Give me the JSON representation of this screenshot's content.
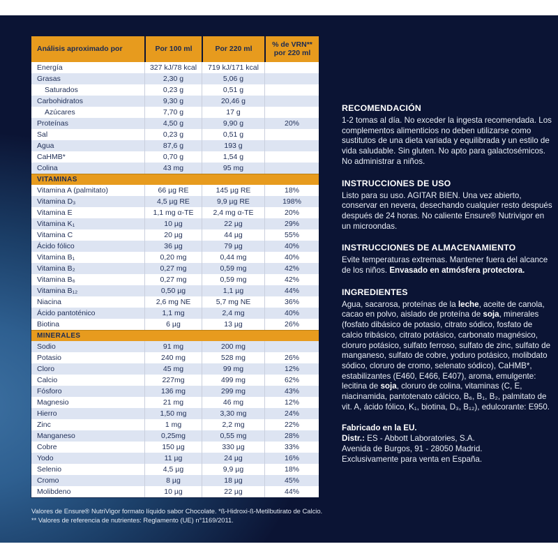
{
  "colors": {
    "accent_orange": "#e79b1e",
    "row_alt": "#dde4f2",
    "row_white": "#ffffff",
    "table_text": "#1e2d55",
    "bg_dark": "#0b1434",
    "bg_glow": "#3d71a2",
    "light_text": "#e9eef6"
  },
  "table": {
    "header": [
      "Análisis aproximado por",
      "Por 100 ml",
      "Por 220 ml",
      "% de VRN** por 220 ml"
    ],
    "sections": [
      {
        "title": "",
        "rows": [
          {
            "label": "Energía",
            "indent": false,
            "per100": "327 kJ/78 kcal",
            "per220": "719 kJ/171 kcal",
            "vrn": ""
          },
          {
            "label": "Grasas",
            "indent": false,
            "per100": "2,30 g",
            "per220": "5,06 g",
            "vrn": ""
          },
          {
            "label": "Saturados",
            "indent": true,
            "per100": "0,23 g",
            "per220": "0,51 g",
            "vrn": ""
          },
          {
            "label": "Carbohidratos",
            "indent": false,
            "per100": "9,30 g",
            "per220": "20,46 g",
            "vrn": ""
          },
          {
            "label": "Azúcares",
            "indent": true,
            "per100": "7,70 g",
            "per220": "17 g",
            "vrn": ""
          },
          {
            "label": "Proteínas",
            "indent": false,
            "per100": "4,50 g",
            "per220": "9,90 g",
            "vrn": "20%"
          },
          {
            "label": "Sal",
            "indent": false,
            "per100": "0,23 g",
            "per220": "0,51 g",
            "vrn": ""
          },
          {
            "label": "Agua",
            "indent": false,
            "per100": "87,6 g",
            "per220": "193 g",
            "vrn": ""
          },
          {
            "label": "CaHMB*",
            "indent": false,
            "per100": "0,70 g",
            "per220": "1,54 g",
            "vrn": ""
          },
          {
            "label": "Colina",
            "indent": false,
            "per100": "43 mg",
            "per220": "95 mg",
            "vrn": ""
          }
        ]
      },
      {
        "title": "VITAMINAS",
        "rows": [
          {
            "label": "Vitamina A (palmitato)",
            "indent": false,
            "per100": "66 µg RE",
            "per220": "145 µg RE",
            "vrn": "18%"
          },
          {
            "label": "Vitamina D₃",
            "indent": false,
            "per100": "4,5 µg RE",
            "per220": "9,9 µg RE",
            "vrn": "198%"
          },
          {
            "label": "Vitamina E",
            "indent": false,
            "per100": "1,1 mg α-TE",
            "per220": "2,4 mg α-TE",
            "vrn": "20%"
          },
          {
            "label": "Vitamina K₁",
            "indent": false,
            "per100": "10 µg",
            "per220": "22 µg",
            "vrn": "29%"
          },
          {
            "label": "Vitamina C",
            "indent": false,
            "per100": "20 µg",
            "per220": "44 µg",
            "vrn": "55%"
          },
          {
            "label": "Ácido fólico",
            "indent": false,
            "per100": "36 µg",
            "per220": "79 µg",
            "vrn": "40%"
          },
          {
            "label": "Vitamina B₁",
            "indent": false,
            "per100": "0,20 mg",
            "per220": "0,44 mg",
            "vrn": "40%"
          },
          {
            "label": "Vitamina B₂",
            "indent": false,
            "per100": "0,27 mg",
            "per220": "0,59 mg",
            "vrn": "42%"
          },
          {
            "label": "Vitamina B₆",
            "indent": false,
            "per100": "0,27 mg",
            "per220": "0,59 mg",
            "vrn": "42%"
          },
          {
            "label": "Vitamina B₁₂",
            "indent": false,
            "per100": "0,50 µg",
            "per220": "1,1 µg",
            "vrn": "44%"
          },
          {
            "label": "Niacina",
            "indent": false,
            "per100": "2,6 mg NE",
            "per220": "5,7 mg NE",
            "vrn": "36%"
          },
          {
            "label": "Ácido pantoténico",
            "indent": false,
            "per100": "1,1 mg",
            "per220": "2,4 mg",
            "vrn": "40%"
          },
          {
            "label": "Biotina",
            "indent": false,
            "per100": "6 µg",
            "per220": "13 µg",
            "vrn": "26%"
          }
        ]
      },
      {
        "title": "MINERALES",
        "rows": [
          {
            "label": "Sodio",
            "indent": false,
            "per100": "91 mg",
            "per220": "200 mg",
            "vrn": ""
          },
          {
            "label": "Potasio",
            "indent": false,
            "per100": "240 mg",
            "per220": "528 mg",
            "vrn": "26%"
          },
          {
            "label": "Cloro",
            "indent": false,
            "per100": "45 mg",
            "per220": "99 mg",
            "vrn": "12%"
          },
          {
            "label": "Calcio",
            "indent": false,
            "per100": "227mg",
            "per220": "499 mg",
            "vrn": "62%"
          },
          {
            "label": "Fósforo",
            "indent": false,
            "per100": "136 mg",
            "per220": "299 mg",
            "vrn": "43%"
          },
          {
            "label": "Magnesio",
            "indent": false,
            "per100": "21 mg",
            "per220": "46 mg",
            "vrn": "12%"
          },
          {
            "label": "Hierro",
            "indent": false,
            "per100": "1,50 mg",
            "per220": "3,30 mg",
            "vrn": "24%"
          },
          {
            "label": "Zinc",
            "indent": false,
            "per100": "1 mg",
            "per220": "2,2 mg",
            "vrn": "22%"
          },
          {
            "label": "Manganeso",
            "indent": false,
            "per100": "0,25mg",
            "per220": "0,55 mg",
            "vrn": "28%"
          },
          {
            "label": "Cobre",
            "indent": false,
            "per100": "150 µg",
            "per220": "330 µg",
            "vrn": "33%"
          },
          {
            "label": "Yodo",
            "indent": false,
            "per100": "11 µg",
            "per220": "24 µg",
            "vrn": "16%"
          },
          {
            "label": "Selenio",
            "indent": false,
            "per100": "4,5 µg",
            "per220": "9,9 µg",
            "vrn": "18%"
          },
          {
            "label": "Cromo",
            "indent": false,
            "per100": "8 µg",
            "per220": "18 µg",
            "vrn": "45%"
          },
          {
            "label": "Molibdeno",
            "indent": false,
            "per100": "10 µg",
            "per220": "22 µg",
            "vrn": "44%"
          }
        ]
      }
    ],
    "footnotes": [
      "Valores de Ensure® NutriVigor formato líquido sabor Chocolate. *ß-Hidroxi-ß-Metilbutirato de Calcio.",
      "** Valores de referencia de nutrientes: Reglamento (UE) n°1169/2011."
    ]
  },
  "right_column": {
    "sections": [
      {
        "heading": "RECOMENDACIÓN",
        "paragraphs": [
          [
            {
              "t": "1-2 tomas al día. No exceder la ingesta recomendada. Los complementos alimenticios no deben utilizarse como sustitutos de una dieta variada y equilibrada y un estilo de vida saludable. Sin gluten. No apto para galactosémicos. No administrar a niños.",
              "b": false
            }
          ]
        ]
      },
      {
        "heading": "INSTRUCCIONES DE USO",
        "paragraphs": [
          [
            {
              "t": "Listo para su uso. AGITAR BIEN. Una vez abierto, conservar en nevera, desechando cualquier resto después después de 24 horas. No caliente Ensure® Nutrivigor en un microondas.",
              "b": false
            }
          ]
        ]
      },
      {
        "heading": "INSTRUCCIONES DE ALMACENAMIENTO",
        "paragraphs": [
          [
            {
              "t": "Evite temperaturas extremas. Mantener fuera del alcance de los niños. ",
              "b": false
            },
            {
              "t": "Envasado en atmósfera protectora.",
              "b": true
            }
          ]
        ]
      },
      {
        "heading": "INGREDIENTES",
        "paragraphs": [
          [
            {
              "t": "Agua, sacarosa, proteínas de la ",
              "b": false
            },
            {
              "t": "leche",
              "b": true
            },
            {
              "t": ", aceite de canola, cacao en polvo, aislado de proteína de ",
              "b": false
            },
            {
              "t": "soja",
              "b": true
            },
            {
              "t": ", minerales (fosfato dibásico de potasio, citrato sódico, fosfato de calcio tribásico, citrato potásico, carbonato magnésico, cloruro potásico, sulfato ferroso, sulfato de zinc, sulfato de manganeso, sulfato de cobre, yoduro potásico, molibdato sódico, cloruro de cromo, selenato sódico), CaHMB*, estabilizantes (E460, E466, E407), aroma, emulgente: lecitina de ",
              "b": false
            },
            {
              "t": "soja",
              "b": true
            },
            {
              "t": ", cloruro de colina, vitaminas (C, E, niacinamida, pantotenato cálcico, B₆, B₁, B₂, palmitato de vit. A, ácido fólico, K₁, biotina, D₃, B₁₂), edulcorante: E950.",
              "b": false
            }
          ]
        ]
      },
      {
        "heading": "",
        "paragraphs": [
          [
            {
              "t": "Fabricado en la EU.",
              "b": true
            }
          ],
          [
            {
              "t": "Distr.:",
              "b": true
            },
            {
              "t": " ES - Abbott Laboratories, S.A.",
              "b": false
            }
          ],
          [
            {
              "t": "Avenida de Burgos, 91 - 28050 Madrid.",
              "b": false
            }
          ],
          [
            {
              "t": "Exclusivamente para venta en España.",
              "b": false
            }
          ]
        ]
      }
    ]
  }
}
